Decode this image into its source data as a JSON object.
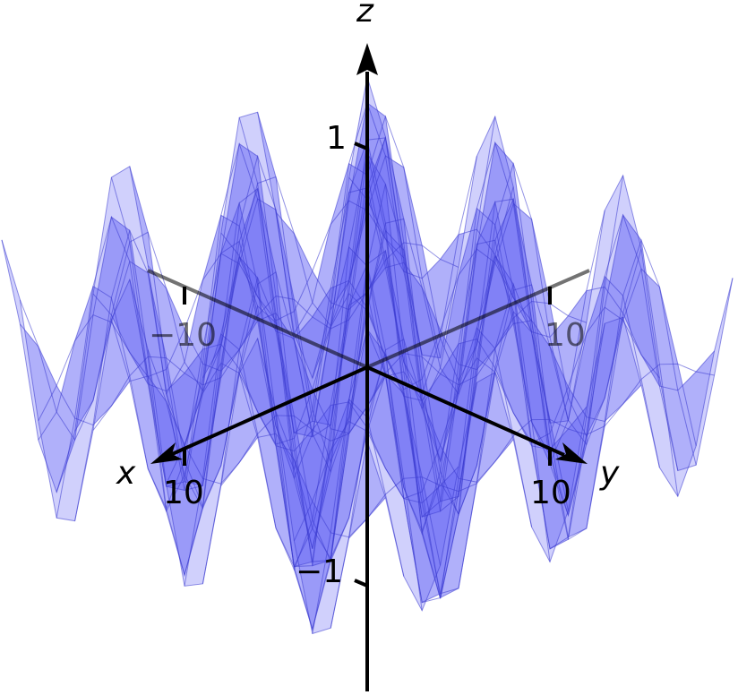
{
  "axes": {
    "x_name": "x",
    "y_name": "y",
    "z_name": "z"
  },
  "ticks": {
    "x_pos": "10",
    "x_neg": "−10",
    "y_pos": "10",
    "y_pos_back": "10",
    "z_pos": "1",
    "z_neg": "−1"
  },
  "colors": {
    "surface": "#6e6ef5",
    "mesh": "#3a3ad0",
    "axis": "#000000"
  }
}
